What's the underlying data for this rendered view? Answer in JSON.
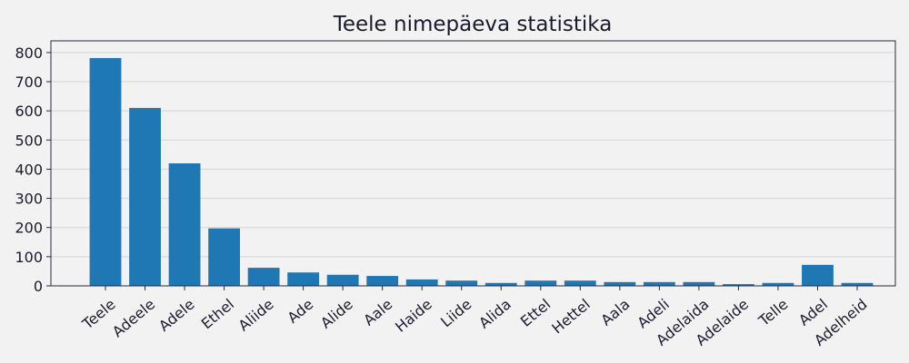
{
  "chart_data": {
    "type": "bar",
    "title": "Teele nimepäeva statistika",
    "xlabel": "",
    "ylabel": "",
    "categories": [
      "Teele",
      "Adeele",
      "Adele",
      "Ethel",
      "Aliide",
      "Ade",
      "Alide",
      "Aale",
      "Haide",
      "Liide",
      "Alida",
      "Ettel",
      "Hettel",
      "Aala",
      "Adeli",
      "Adelaida",
      "Adelaide",
      "Telle",
      "Adel",
      "Adelheid"
    ],
    "values": [
      781,
      610,
      420,
      197,
      62,
      46,
      38,
      34,
      22,
      18,
      10,
      18,
      18,
      13,
      13,
      13,
      6,
      10,
      72,
      10
    ],
    "ylim": [
      0,
      840
    ],
    "yticks": [
      0,
      100,
      200,
      300,
      400,
      500,
      600,
      700,
      800
    ],
    "grid": "y",
    "legend": "none",
    "bar_color": "#1f77b4",
    "grid_color": "#d4d4d4",
    "background_color": "#f2f2f2"
  }
}
